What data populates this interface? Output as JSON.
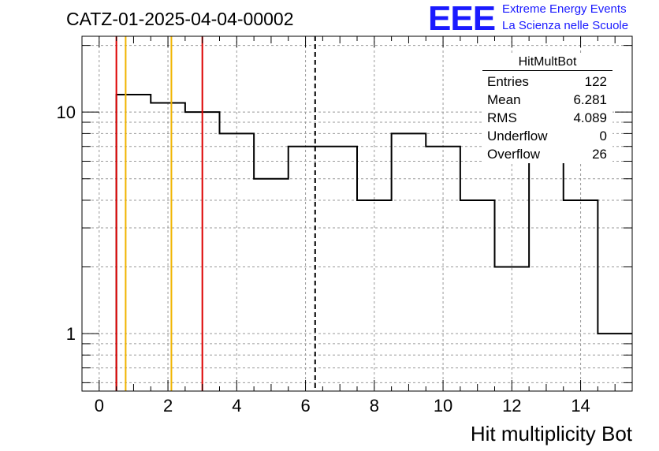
{
  "header": {
    "run_title": "CATZ-01-2025-04-04-00002",
    "logo_text": "EEE",
    "logo_line1": "Extreme Energy Events",
    "logo_line2": "La Scienza nelle Scuole"
  },
  "stats_box": {
    "title": "HitMultBot",
    "rows": [
      {
        "label": "Entries",
        "value": "122"
      },
      {
        "label": "Mean",
        "value": "6.281"
      },
      {
        "label": "RMS",
        "value": "4.089"
      },
      {
        "label": "Underflow",
        "value": "0"
      },
      {
        "label": "Overflow",
        "value": "26"
      }
    ]
  },
  "colors": {
    "accent": "#1a1aff",
    "histogram": "#000000",
    "red_line": "#dd0000",
    "orange_line": "#f0b400",
    "grid": "#999999"
  },
  "chart_data": {
    "type": "bar",
    "title": "",
    "xlabel": "Hit multiplicity Bot",
    "ylabel": "",
    "xlim": [
      -0.5,
      15.5
    ],
    "ylim": [
      0.55,
      22
    ],
    "y_scale": "log",
    "grid": true,
    "x_ticks": [
      0,
      2,
      4,
      6,
      8,
      10,
      12,
      14
    ],
    "y_ticks": [
      1,
      10
    ],
    "bin_edges": [
      -0.5,
      0.5,
      1.5,
      2.5,
      3.5,
      4.5,
      5.5,
      6.5,
      7.5,
      8.5,
      9.5,
      10.5,
      11.5,
      12.5,
      13.5,
      14.5,
      15.5
    ],
    "series": [
      {
        "values": [
          0,
          12,
          11,
          10,
          8,
          5,
          7,
          7,
          4,
          8,
          7,
          4,
          2,
          6,
          4,
          1
        ]
      }
    ],
    "vertical_lines": [
      {
        "x": 0.5,
        "color": "red",
        "style": "solid"
      },
      {
        "x": 3.0,
        "color": "red",
        "style": "solid"
      },
      {
        "x": 0.77,
        "color": "orange",
        "style": "solid"
      },
      {
        "x": 2.1,
        "color": "orange",
        "style": "solid"
      },
      {
        "x": 6.28,
        "color": "black",
        "style": "dashed"
      }
    ]
  }
}
